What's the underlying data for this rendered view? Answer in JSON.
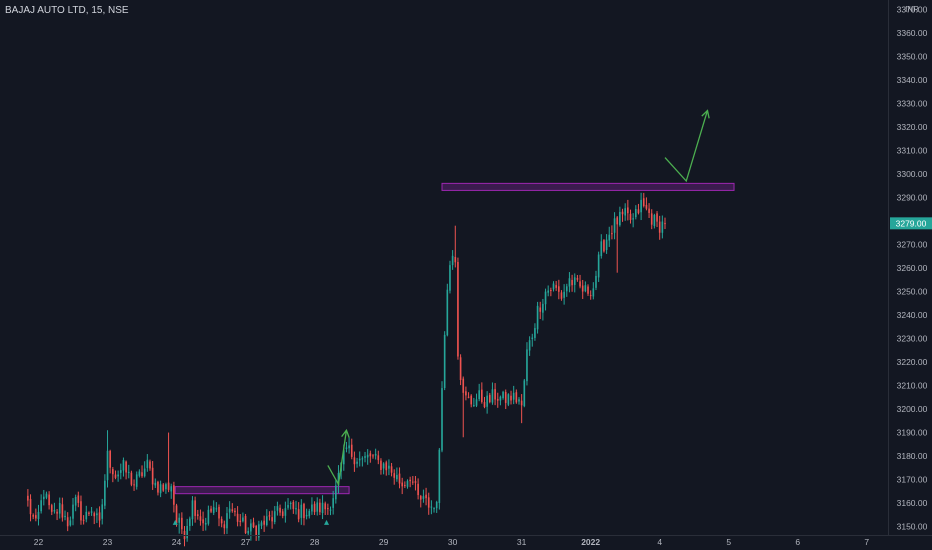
{
  "symbol": {
    "title": "BAJAJ AUTO LTD, 15, NSE"
  },
  "colors": {
    "background": "#131722",
    "up": "#26a69a",
    "down": "#ef5350",
    "zone_fill": "#4a1e5e",
    "zone_stroke": "#9c27b0",
    "arrow": "#4caf50",
    "axis_text": "#b2b5be",
    "price_badge": "#26a69a",
    "grid": "#1e222d"
  },
  "chart_data": {
    "type": "candlestick",
    "title": "BAJAJ AUTO LTD, 15, NSE",
    "currency": "INR",
    "ylim": [
      3146,
      3374
    ],
    "y_ticks": [
      3150,
      3160,
      3170,
      3180,
      3190,
      3200,
      3210,
      3220,
      3230,
      3240,
      3250,
      3260,
      3270,
      3280,
      3290,
      3300,
      3310,
      3320,
      3330,
      3340,
      3350,
      3360,
      3370
    ],
    "y_tick_labels": [
      "3150.00",
      "3160.00",
      "3170.00",
      "3180.00",
      "3190.00",
      "3200.00",
      "3210.00",
      "3220.00",
      "3230.00",
      "3240.00",
      "3250.00",
      "3260.00",
      "3270.00",
      "3280.00",
      "3290.00",
      "3300.00",
      "3310.00",
      "3320.00",
      "3330.00",
      "3340.00",
      "3350.00",
      "3360.00",
      "3370.00"
    ],
    "x_ticks": [
      {
        "label": "22",
        "index": 4
      },
      {
        "label": "23",
        "index": 30
      },
      {
        "label": "24",
        "index": 56
      },
      {
        "label": "27",
        "index": 82
      },
      {
        "label": "28",
        "index": 108
      },
      {
        "label": "29",
        "index": 134
      },
      {
        "label": "30",
        "index": 160
      },
      {
        "label": "31",
        "index": 186
      },
      {
        "label": "2022",
        "index": 212
      },
      {
        "label": "4",
        "index": 238
      },
      {
        "label": "5",
        "index": 264
      },
      {
        "label": "6",
        "index": 290
      },
      {
        "label": "7",
        "index": 316
      }
    ],
    "x_range": [
      -10.5,
      324
    ],
    "last_price": 3279.0,
    "last_price_label": "3279.00",
    "grid": false,
    "zones": [
      {
        "x_start": 55.5,
        "x_end": 121,
        "low": 3164,
        "high": 3167
      },
      {
        "x_start": 156,
        "x_end": 266,
        "low": 3293,
        "high": 3296
      }
    ],
    "arrows": [
      {
        "points": [
          [
            113,
            3176
          ],
          [
            117,
            3168
          ],
          [
            120,
            3191
          ]
        ]
      },
      {
        "points": [
          [
            240,
            3307
          ],
          [
            248,
            3297
          ],
          [
            256,
            3327
          ]
        ]
      }
    ],
    "markers": [
      {
        "x": 55.5,
        "price": 3152
      },
      {
        "x": 112.5,
        "price": 3152
      }
    ],
    "anchors": [
      [
        0,
        3160
      ],
      [
        3,
        3150
      ],
      [
        6,
        3165
      ],
      [
        9,
        3154
      ],
      [
        12,
        3158
      ],
      [
        15,
        3152
      ],
      [
        18,
        3160
      ],
      [
        21,
        3153
      ],
      [
        24,
        3158
      ],
      [
        27,
        3150
      ],
      [
        30,
        3180
      ],
      [
        33,
        3172
      ],
      [
        36,
        3175
      ],
      [
        40,
        3168
      ],
      [
        45,
        3176
      ],
      [
        48,
        3168
      ],
      [
        51,
        3166
      ],
      [
        54,
        3168
      ],
      [
        56,
        3152
      ],
      [
        59,
        3148
      ],
      [
        62,
        3160
      ],
      [
        66,
        3152
      ],
      [
        70,
        3158
      ],
      [
        73,
        3150
      ],
      [
        76,
        3158
      ],
      [
        80,
        3152
      ],
      [
        83,
        3148
      ],
      [
        87,
        3150
      ],
      [
        91,
        3153
      ],
      [
        95,
        3156
      ],
      [
        98,
        3158
      ],
      [
        102,
        3156
      ],
      [
        106,
        3157
      ],
      [
        110,
        3158
      ],
      [
        113,
        3158
      ],
      [
        116,
        3166
      ],
      [
        118,
        3175
      ],
      [
        120,
        3183
      ],
      [
        123,
        3180
      ],
      [
        126,
        3178
      ],
      [
        129,
        3180
      ],
      [
        132,
        3177
      ],
      [
        135,
        3176
      ],
      [
        138,
        3172
      ],
      [
        141,
        3168
      ],
      [
        144,
        3172
      ],
      [
        147,
        3162
      ],
      [
        150,
        3160
      ],
      [
        153,
        3158
      ],
      [
        154,
        3163
      ],
      [
        155,
        3180
      ],
      [
        156,
        3210
      ],
      [
        157,
        3235
      ],
      [
        158,
        3250
      ],
      [
        159,
        3262
      ],
      [
        160,
        3268
      ],
      [
        161,
        3265
      ],
      [
        162,
        3225
      ],
      [
        164,
        3205
      ],
      [
        167,
        3203
      ],
      [
        170,
        3205
      ],
      [
        173,
        3203
      ],
      [
        176,
        3206
      ],
      [
        179,
        3204
      ],
      [
        182,
        3205
      ],
      [
        185,
        3204
      ],
      [
        186,
        3200
      ],
      [
        188,
        3224
      ],
      [
        190,
        3232
      ],
      [
        192,
        3242
      ],
      [
        195,
        3250
      ],
      [
        198,
        3252
      ],
      [
        201,
        3248
      ],
      [
        204,
        3255
      ],
      [
        207,
        3252
      ],
      [
        210,
        3250
      ],
      [
        213,
        3252
      ],
      [
        216,
        3268
      ],
      [
        219,
        3275
      ],
      [
        222,
        3280
      ],
      [
        225,
        3282
      ],
      [
        228,
        3280
      ],
      [
        231,
        3287
      ],
      [
        234,
        3283
      ],
      [
        237,
        3278
      ],
      [
        240,
        3279
      ]
    ],
    "spikes": [
      {
        "index": 30,
        "high": 3191
      },
      {
        "index": 53,
        "high": 3190
      },
      {
        "index": 57,
        "low": 3147
      },
      {
        "index": 84,
        "low": 3144
      },
      {
        "index": 161,
        "high": 3278
      },
      {
        "index": 164,
        "low": 3188
      },
      {
        "index": 186,
        "low": 3194
      },
      {
        "index": 222,
        "low": 3258
      },
      {
        "index": 231,
        "high": 3292
      },
      {
        "index": 238,
        "low": 3272
      }
    ]
  }
}
